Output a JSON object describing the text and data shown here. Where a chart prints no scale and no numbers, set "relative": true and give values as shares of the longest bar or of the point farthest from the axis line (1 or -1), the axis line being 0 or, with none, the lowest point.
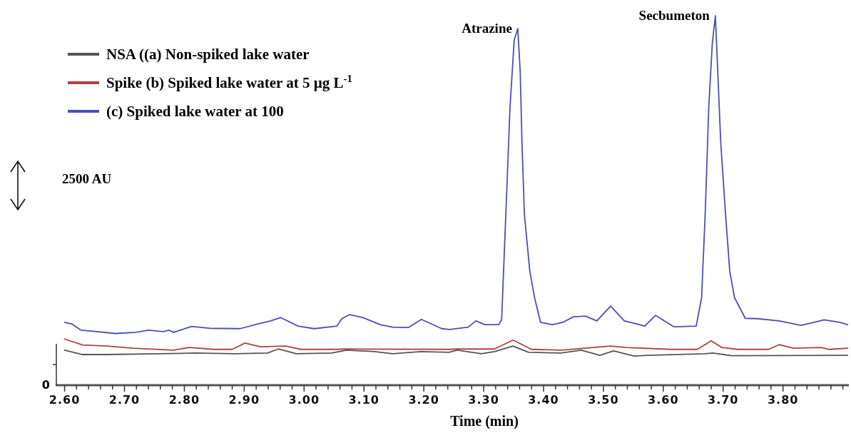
{
  "chart_data": {
    "type": "line",
    "relative": true,
    "xlabel": "Time (min)",
    "xlim": [
      2.585,
      3.91
    ],
    "xticks": [
      {
        "value": 2.6,
        "label": "2.60"
      },
      {
        "value": 2.62,
        "label": null
      },
      {
        "value": 2.64,
        "label": null
      },
      {
        "value": 2.66,
        "label": null
      },
      {
        "value": 2.68,
        "label": null
      },
      {
        "value": 2.7,
        "label": "2.70"
      },
      {
        "value": 2.72,
        "label": null
      },
      {
        "value": 2.74,
        "label": null
      },
      {
        "value": 2.76,
        "label": null
      },
      {
        "value": 2.78,
        "label": null
      },
      {
        "value": 2.8,
        "label": "2.80"
      },
      {
        "value": 2.82,
        "label": null
      },
      {
        "value": 2.84,
        "label": null
      },
      {
        "value": 2.86,
        "label": null
      },
      {
        "value": 2.88,
        "label": null
      },
      {
        "value": 2.9,
        "label": "2.90"
      },
      {
        "value": 2.92,
        "label": null
      },
      {
        "value": 2.94,
        "label": null
      },
      {
        "value": 2.96,
        "label": null
      },
      {
        "value": 2.98,
        "label": null
      },
      {
        "value": 3.0,
        "label": "3.00"
      },
      {
        "value": 3.02,
        "label": null
      },
      {
        "value": 3.04,
        "label": null
      },
      {
        "value": 3.06,
        "label": null
      },
      {
        "value": 3.08,
        "label": null
      },
      {
        "value": 3.1,
        "label": "3.10"
      },
      {
        "value": 3.12,
        "label": null
      },
      {
        "value": 3.14,
        "label": null
      },
      {
        "value": 3.16,
        "label": null
      },
      {
        "value": 3.18,
        "label": null
      },
      {
        "value": 3.2,
        "label": "3.20"
      },
      {
        "value": 3.22,
        "label": null
      },
      {
        "value": 3.24,
        "label": null
      },
      {
        "value": 3.26,
        "label": null
      },
      {
        "value": 3.28,
        "label": null
      },
      {
        "value": 3.3,
        "label": "3.30"
      },
      {
        "value": 3.32,
        "label": null
      },
      {
        "value": 3.34,
        "label": null
      },
      {
        "value": 3.36,
        "label": null
      },
      {
        "value": 3.38,
        "label": null
      },
      {
        "value": 3.4,
        "label": "3.40"
      },
      {
        "value": 3.42,
        "label": null
      },
      {
        "value": 3.44,
        "label": null
      },
      {
        "value": 3.46,
        "label": null
      },
      {
        "value": 3.48,
        "label": null
      },
      {
        "value": 3.5,
        "label": "3.50"
      },
      {
        "value": 3.52,
        "label": null
      },
      {
        "value": 3.54,
        "label": null
      },
      {
        "value": 3.56,
        "label": null
      },
      {
        "value": 3.58,
        "label": null
      },
      {
        "value": 3.6,
        "label": "3.60"
      },
      {
        "value": 3.62,
        "label": null
      },
      {
        "value": 3.64,
        "label": null
      },
      {
        "value": 3.66,
        "label": null
      },
      {
        "value": 3.68,
        "label": null
      },
      {
        "value": 3.7,
        "label": "3.70"
      },
      {
        "value": 3.72,
        "label": null
      },
      {
        "value": 3.74,
        "label": null
      },
      {
        "value": 3.76,
        "label": null
      },
      {
        "value": 3.78,
        "label": null
      },
      {
        "value": 3.8,
        "label": "3.80"
      },
      {
        "value": 3.82,
        "label": null
      },
      {
        "value": 3.84,
        "label": null
      },
      {
        "value": 3.86,
        "label": null
      },
      {
        "value": 3.88,
        "label": null
      },
      {
        "value": 3.9,
        "label": null
      }
    ],
    "legend": "top left",
    "grid": false,
    "marker": "none",
    "line_style": "solid",
    "series": [
      {
        "name": "NSA ((a) Non-spiked lake water",
        "color": "#555555",
        "x": [
          2.6,
          2.63,
          2.671,
          2.757,
          2.817,
          2.885,
          2.939,
          2.957,
          2.987,
          3.046,
          3.071,
          3.118,
          3.148,
          3.195,
          3.242,
          3.256,
          3.296,
          3.318,
          3.349,
          3.375,
          3.429,
          3.463,
          3.494,
          3.517,
          3.551,
          3.574,
          3.67,
          3.683,
          3.714,
          3.908
        ],
        "values": [
          0.095,
          0.083,
          0.083,
          0.085,
          0.087,
          0.085,
          0.087,
          0.098,
          0.085,
          0.087,
          0.095,
          0.091,
          0.085,
          0.091,
          0.089,
          0.095,
          0.085,
          0.091,
          0.106,
          0.089,
          0.087,
          0.095,
          0.081,
          0.093,
          0.079,
          0.081,
          0.085,
          0.087,
          0.08,
          0.081
        ]
      },
      {
        "name": "Spike (b) Spiked lake water at 5 µg L$^{-1}$",
        "color": "#b04040",
        "x": [
          2.6,
          2.63,
          2.671,
          2.714,
          2.782,
          2.808,
          2.85,
          2.88,
          2.901,
          2.927,
          2.969,
          2.995,
          3.055,
          3.068,
          3.242,
          3.256,
          3.318,
          3.349,
          3.38,
          3.429,
          3.512,
          3.538,
          3.613,
          3.657,
          3.68,
          3.698,
          3.724,
          3.776,
          3.794,
          3.817,
          3.864,
          3.877,
          3.908
        ],
        "values": [
          0.125,
          0.109,
          0.106,
          0.1,
          0.095,
          0.102,
          0.097,
          0.097,
          0.114,
          0.104,
          0.106,
          0.097,
          0.097,
          0.098,
          0.097,
          0.098,
          0.098,
          0.122,
          0.097,
          0.095,
          0.106,
          0.102,
          0.097,
          0.097,
          0.12,
          0.102,
          0.097,
          0.097,
          0.11,
          0.1,
          0.102,
          0.097,
          0.1
        ]
      },
      {
        "name": "(c) Spiked lake water at 100",
        "color": "#4a4fb8",
        "x": [
          2.6,
          2.612,
          2.627,
          2.642,
          2.685,
          2.719,
          2.74,
          2.765,
          2.774,
          2.782,
          2.812,
          2.842,
          2.893,
          2.923,
          2.944,
          2.961,
          2.99,
          3.017,
          3.055,
          3.063,
          3.076,
          3.098,
          3.127,
          3.148,
          3.174,
          3.196,
          3.23,
          3.243,
          3.274,
          3.287,
          3.302,
          3.325,
          3.33,
          3.337,
          3.344,
          3.351,
          3.357,
          3.361,
          3.364,
          3.368,
          3.377,
          3.385,
          3.395,
          3.415,
          3.432,
          3.45,
          3.47,
          3.489,
          3.512,
          3.535,
          3.556,
          3.569,
          3.587,
          3.618,
          3.655,
          3.664,
          3.67,
          3.676,
          3.682,
          3.687,
          3.69,
          3.696,
          3.704,
          3.711,
          3.719,
          3.737,
          3.758,
          3.794,
          3.83,
          3.869,
          3.895,
          3.908
        ],
        "values": [
          0.17,
          0.166,
          0.149,
          0.147,
          0.14,
          0.143,
          0.149,
          0.145,
          0.149,
          0.143,
          0.159,
          0.154,
          0.153,
          0.166,
          0.174,
          0.183,
          0.16,
          0.153,
          0.16,
          0.18,
          0.191,
          0.183,
          0.164,
          0.157,
          0.156,
          0.178,
          0.153,
          0.151,
          0.157,
          0.174,
          0.164,
          0.164,
          0.177,
          0.463,
          0.753,
          0.934,
          0.965,
          0.849,
          0.656,
          0.463,
          0.309,
          0.237,
          0.17,
          0.164,
          0.17,
          0.185,
          0.187,
          0.174,
          0.214,
          0.174,
          0.166,
          0.16,
          0.189,
          0.158,
          0.16,
          0.237,
          0.463,
          0.753,
          0.927,
          1,
          0.888,
          0.656,
          0.463,
          0.309,
          0.237,
          0.181,
          0.18,
          0.174,
          0.162,
          0.177,
          0.17,
          0.164
        ]
      }
    ],
    "annotations": [
      {
        "text": "Atrazine",
        "x": 3.357,
        "y": 0.965
      },
      {
        "text": "Secbumeton",
        "x": 3.687,
        "y": 1
      },
      "2500 AU",
      "0"
    ]
  }
}
